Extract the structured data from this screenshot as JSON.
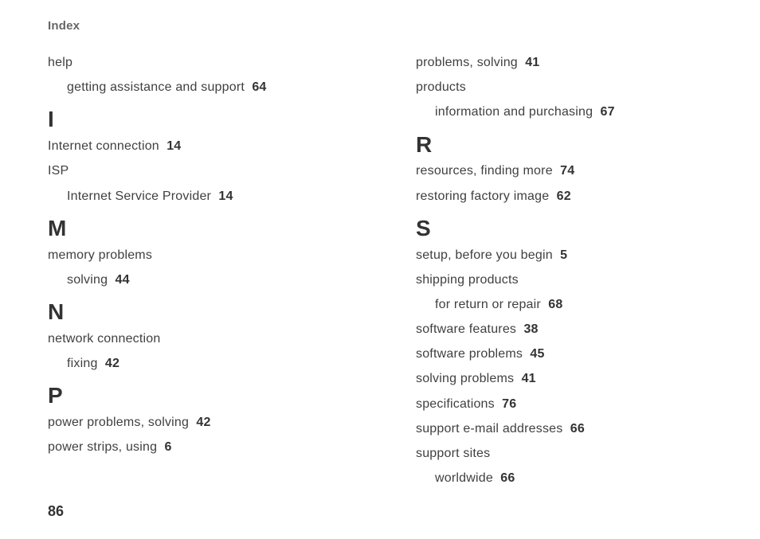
{
  "meta": {
    "header": "Index",
    "page_number": "86",
    "text_color": "#404040",
    "bold_color": "#333333",
    "header_color": "#666666",
    "background": "#ffffff",
    "body_fontsize": 16,
    "letter_fontsize": 28,
    "header_fontsize": 15,
    "footer_fontsize": 18
  },
  "left": {
    "help": {
      "label": "help",
      "sub": {
        "label": "getting assistance and support",
        "page": "64"
      }
    },
    "I": {
      "letter": "I",
      "internet": {
        "label": "Internet connection",
        "page": "14"
      },
      "isp": {
        "label": "ISP",
        "sub": {
          "label": "Internet Service Provider",
          "page": "14"
        }
      }
    },
    "M": {
      "letter": "M",
      "memory": {
        "label": "memory problems",
        "sub": {
          "label": "solving",
          "page": "44"
        }
      }
    },
    "N": {
      "letter": "N",
      "network": {
        "label": "network connection",
        "sub": {
          "label": "fixing",
          "page": "42"
        }
      }
    },
    "P": {
      "letter": "P",
      "power": {
        "label": "power problems, solving",
        "page": "42"
      },
      "strips": {
        "label": "power strips, using",
        "page": "6"
      }
    }
  },
  "right": {
    "top": {
      "problems": {
        "label": "problems, solving",
        "page": "41"
      },
      "products": {
        "label": "products",
        "sub": {
          "label": "information and purchasing",
          "page": "67"
        }
      }
    },
    "R": {
      "letter": "R",
      "resources": {
        "label": "resources, finding more",
        "page": "74"
      },
      "restoring": {
        "label": "restoring factory image",
        "page": "62"
      }
    },
    "S": {
      "letter": "S",
      "setup": {
        "label": "setup, before you begin",
        "page": "5"
      },
      "shipping": {
        "label": "shipping products",
        "sub": {
          "label": "for return or repair",
          "page": "68"
        }
      },
      "swfeatures": {
        "label": "software features",
        "page": "38"
      },
      "swproblems": {
        "label": "software problems",
        "page": "45"
      },
      "solving": {
        "label": "solving problems",
        "page": "41"
      },
      "specs": {
        "label": "specifications",
        "page": "76"
      },
      "email": {
        "label": "support e-mail addresses",
        "page": "66"
      },
      "sites": {
        "label": "support sites",
        "sub": {
          "label": "worldwide",
          "page": "66"
        }
      }
    }
  }
}
